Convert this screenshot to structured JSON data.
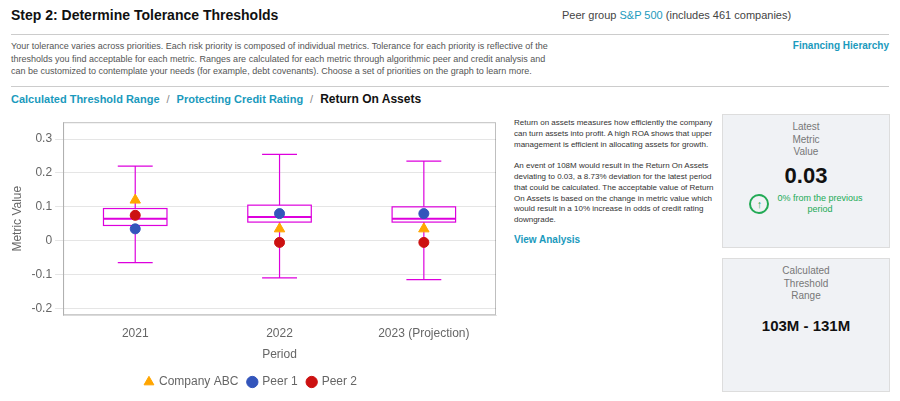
{
  "chart_data": {
    "type": "boxplot",
    "title": "Step 2: Determine Tolerance Thresholds",
    "x_label": "Period",
    "y_label": "Metric Value",
    "categories": [
      "2021",
      "2022",
      "2023 (Projection)"
    ],
    "boxes": [
      {
        "whisker_low": -0.065,
        "q1": 0.045,
        "median": 0.065,
        "q3": 0.095,
        "whisker_high": 0.22
      },
      {
        "whisker_low": -0.11,
        "q1": 0.055,
        "median": 0.07,
        "q3": 0.105,
        "whisker_high": 0.255
      },
      {
        "whisker_low": -0.115,
        "q1": 0.055,
        "median": 0.065,
        "q3": 0.1,
        "whisker_high": 0.235
      }
    ],
    "color": "#dd00dd",
    "series": [
      {
        "name": "Company ABC",
        "type": "scatter",
        "marker": "triangle",
        "color": "#ffa500",
        "values": [
          0.12,
          0.035,
          0.035
        ]
      },
      {
        "name": "Peer 1",
        "type": "scatter",
        "marker": "circle",
        "color": "#3355bb",
        "values": [
          0.035,
          0.08,
          0.08
        ]
      },
      {
        "name": "Peer 2",
        "type": "scatter",
        "marker": "circle",
        "color": "#cc1111",
        "values": [
          0.075,
          -0.005,
          -0.005
        ]
      }
    ],
    "ylim": [
      -0.22,
      0.35
    ],
    "yticks": [
      -0.2,
      -0.1,
      0,
      0.1,
      0.2,
      0.3
    ],
    "grid": true,
    "legend": "bottom",
    "annotations": [
      "Peer group ",
      "S&P 500",
      " (includes 461 companies)",
      "Your tolerance varies across priorities. Each risk priority is composed of individual metrics. Tolerance for each priority is reflective of the\nthresholds you find acceptable for each metric. Ranges are calculated for each metric through algorithmic peer and credit analysis and\ncan be customized to contemplate your needs (for example, debt covenants). Choose a set of priorities on the graph to learn more.",
      "Financing Hierarchy",
      "Calculated Threshold Range",
      "/",
      "Protecting Credit Rating",
      "/",
      "Return On Assets",
      "Return on assets measures how efficiently the company\ncan turn assets into profit. A high ROA shows that upper\nmanagement is efficient in allocating assets for growth.\n\nAn event of 108M would result in the Return On Assets\ndeviating to 0.03, a 8.73% deviation for the latest period\nthat could be calculated. The acceptable value of Return\nOn Assets is based on the change in metric value which\nwould result in a 10% increase in odds of credit rating\ndowngrade.",
      "View Analysis",
      "Latest\nMetric\nValue",
      "0.03",
      "↑",
      "0% from the previous",
      "period",
      "Calculated\nThreshold\nRange",
      "103M - 131M"
    ]
  }
}
